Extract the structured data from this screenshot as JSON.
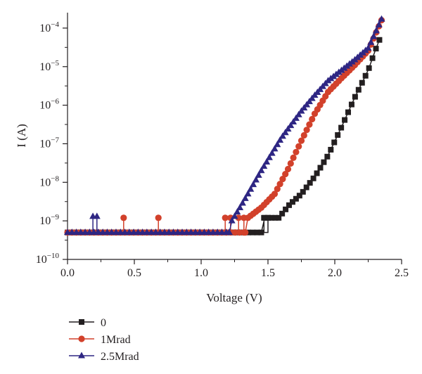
{
  "chart_data": {
    "type": "scatter",
    "title": "",
    "xlabel": "Voltage (V)",
    "ylabel": "I (A)",
    "xlim": [
      0.0,
      2.5
    ],
    "ylim_log10": [
      -10,
      -3.6
    ],
    "y_scale": "log",
    "grid": false,
    "legend_position": "bottom-left",
    "x_ticks": [
      {
        "value": 0.0,
        "label": "0.0"
      },
      {
        "value": 0.5,
        "label": "0.5"
      },
      {
        "value": 1.0,
        "label": "1.0"
      },
      {
        "value": 1.5,
        "label": "1.5"
      },
      {
        "value": 2.0,
        "label": "2.0"
      },
      {
        "value": 2.5,
        "label": "2.5"
      }
    ],
    "y_ticks": [
      {
        "exp": -10,
        "label_base": "10",
        "label_exp": "−10"
      },
      {
        "exp": -9,
        "label_base": "10",
        "label_exp": "−9"
      },
      {
        "exp": -8,
        "label_base": "10",
        "label_exp": "−8"
      },
      {
        "exp": -7,
        "label_base": "10",
        "label_exp": "−7"
      },
      {
        "exp": -6,
        "label_base": "10",
        "label_exp": "−6"
      },
      {
        "exp": -5,
        "label_base": "10",
        "label_exp": "−5"
      },
      {
        "exp": -4,
        "label_base": "10",
        "label_exp": "−4"
      }
    ],
    "series": [
      {
        "name": "0",
        "color": "#231f20",
        "marker": "square",
        "baseline": {
          "x_start": 0.0,
          "x_end": 1.45,
          "step": 0.033,
          "value": 5e-10,
          "spikes": [
            {
              "x": 1.47,
              "value": 1.2e-09
            },
            {
              "x": 1.5,
              "value": 1.2e-09
            }
          ]
        },
        "curve": {
          "step": 0.026,
          "points": [
            {
              "x": 1.45,
              "value": 5e-10
            },
            {
              "x": 1.46,
              "value": 1.2e-09
            },
            {
              "x": 1.58,
              "value": 1.2e-09
            },
            {
              "x": 1.66,
              "value": 2.6e-09
            },
            {
              "x": 1.75,
              "value": 5e-09
            },
            {
              "x": 1.85,
              "value": 1.4e-08
            },
            {
              "x": 1.95,
              "value": 5e-08
            },
            {
              "x": 2.05,
              "value": 2.7e-07
            },
            {
              "x": 2.15,
              "value": 1.6e-06
            },
            {
              "x": 2.25,
              "value": 8e-06
            },
            {
              "x": 2.3,
              "value": 2.5e-05
            },
            {
              "x": 2.35,
              "value": 6.8e-05
            }
          ]
        }
      },
      {
        "name": "1Mrad",
        "color": "#d2412b",
        "marker": "circle",
        "baseline": {
          "x_start": 0.0,
          "x_end": 1.33,
          "step": 0.033,
          "value": 5e-10,
          "spikes": [
            {
              "x": 0.42,
              "value": 1.2e-09
            },
            {
              "x": 0.68,
              "value": 1.2e-09
            },
            {
              "x": 1.18,
              "value": 1.2e-09
            },
            {
              "x": 1.22,
              "value": 1.2e-09
            },
            {
              "x": 1.28,
              "value": 1.2e-09
            },
            {
              "x": 1.32,
              "value": 1.2e-09
            }
          ]
        },
        "curve": {
          "step": 0.02,
          "points": [
            {
              "x": 1.33,
              "value": 5e-10
            },
            {
              "x": 1.35,
              "value": 1.2e-09
            },
            {
              "x": 1.45,
              "value": 2.2e-09
            },
            {
              "x": 1.55,
              "value": 5e-09
            },
            {
              "x": 1.65,
              "value": 2.2e-08
            },
            {
              "x": 1.75,
              "value": 1.2e-07
            },
            {
              "x": 1.85,
              "value": 6e-07
            },
            {
              "x": 1.95,
              "value": 2.2e-06
            },
            {
              "x": 2.05,
              "value": 5e-06
            },
            {
              "x": 2.15,
              "value": 1.1e-05
            },
            {
              "x": 2.25,
              "value": 2.6e-05
            },
            {
              "x": 2.35,
              "value": 0.00016
            }
          ]
        }
      },
      {
        "name": "2.5Mrad",
        "color": "#2e2683",
        "marker": "triangle",
        "baseline": {
          "x_start": 0.0,
          "x_end": 1.21,
          "step": 0.033,
          "value": 5e-10,
          "spikes": [
            {
              "x": 0.19,
              "value": 1.3e-09
            },
            {
              "x": 0.22,
              "value": 1.3e-09
            }
          ]
        },
        "curve": {
          "step": 0.02,
          "points": [
            {
              "x": 1.21,
              "value": 5e-10
            },
            {
              "x": 1.23,
              "value": 1e-09
            },
            {
              "x": 1.3,
              "value": 2.5e-09
            },
            {
              "x": 1.45,
              "value": 2e-08
            },
            {
              "x": 1.6,
              "value": 1.4e-07
            },
            {
              "x": 1.75,
              "value": 7e-07
            },
            {
              "x": 1.85,
              "value": 1.8e-06
            },
            {
              "x": 1.95,
              "value": 4.3e-06
            },
            {
              "x": 2.05,
              "value": 8e-06
            },
            {
              "x": 2.15,
              "value": 1.5e-05
            },
            {
              "x": 2.25,
              "value": 3e-05
            },
            {
              "x": 2.35,
              "value": 0.00017
            }
          ]
        }
      }
    ]
  }
}
